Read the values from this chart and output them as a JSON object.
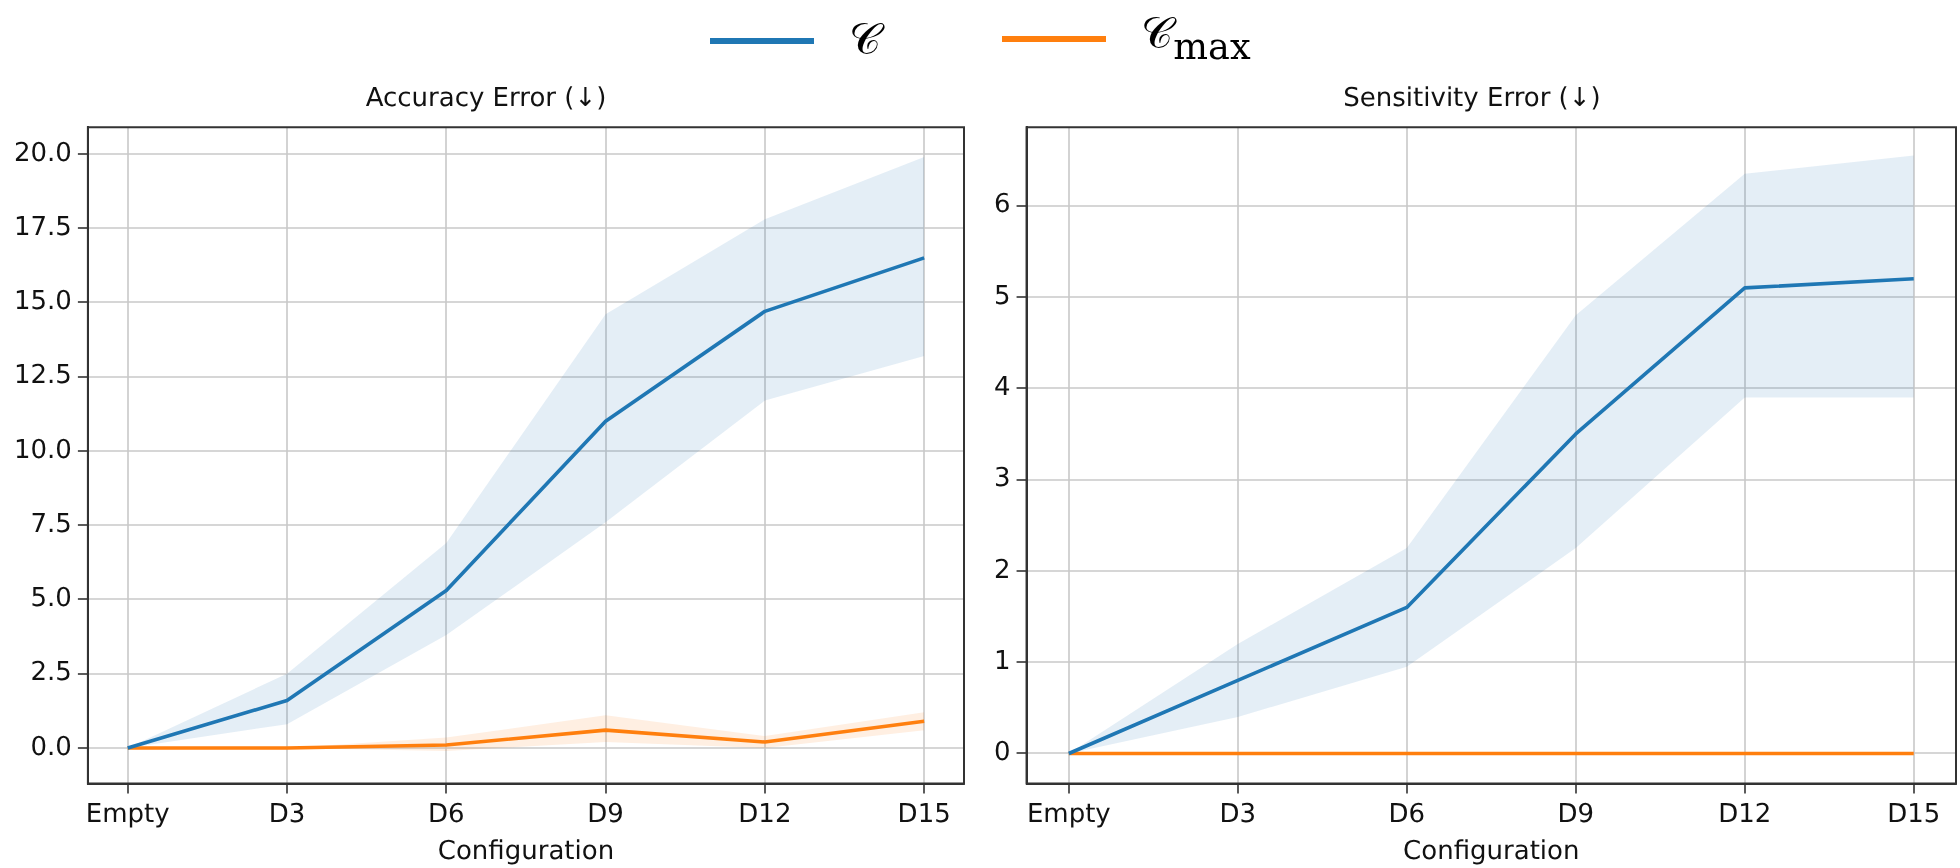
{
  "chart_data": [
    {
      "type": "line",
      "title": "Accuracy Error (↓)",
      "xlabel": "Configuration",
      "categories": [
        "Empty",
        "D3",
        "D6",
        "D9",
        "D12",
        "D15"
      ],
      "ylim": [
        -1.2,
        20.9
      ],
      "yticks": [
        {
          "value": 0,
          "label": "0.0"
        },
        {
          "value": 2.5,
          "label": "2.5"
        },
        {
          "value": 5,
          "label": "5.0"
        },
        {
          "value": 7.5,
          "label": "7.5"
        },
        {
          "value": 10,
          "label": "10.0"
        },
        {
          "value": 12.5,
          "label": "12.5"
        },
        {
          "value": 15,
          "label": "15.0"
        },
        {
          "value": 17.5,
          "label": "17.5"
        },
        {
          "value": 20,
          "label": "20.0"
        }
      ],
      "grid": true,
      "legend": "top",
      "marker": "none",
      "line_style": "solid",
      "series": [
        {
          "name": "𝒞",
          "color": "#1f77b4",
          "values": [
            0,
            1.6,
            5.3,
            11.0,
            14.7,
            16.5
          ],
          "lower": [
            0,
            0.8,
            3.8,
            7.6,
            11.7,
            13.2
          ],
          "upper": [
            0,
            2.5,
            6.9,
            14.6,
            17.8,
            19.9
          ]
        },
        {
          "name": "𝒞$_{max}$",
          "color": "#ff7f0e",
          "values": [
            0,
            0,
            0.1,
            0.6,
            0.2,
            0.9
          ],
          "lower": [
            0,
            0,
            -0.1,
            0.2,
            0,
            0.6
          ],
          "upper": [
            0,
            0,
            0.35,
            1.1,
            0.4,
            1.2
          ]
        }
      ]
    },
    {
      "type": "line",
      "title": "Sensitivity Error (↓)",
      "xlabel": "Configuration",
      "categories": [
        "Empty",
        "D3",
        "D6",
        "D9",
        "D12",
        "D15"
      ],
      "ylim": [
        -0.33,
        6.86
      ],
      "yticks": [
        0,
        1,
        2,
        3,
        4,
        5,
        6
      ],
      "grid": true,
      "marker": "none",
      "line_style": "solid",
      "series": [
        {
          "color": "#1f77b4",
          "values": [
            0,
            0.8,
            1.6,
            3.5,
            5.1,
            5.2
          ],
          "lower": [
            0,
            0.4,
            0.95,
            2.25,
            3.9,
            3.9
          ],
          "upper": [
            0,
            1.2,
            2.25,
            4.8,
            6.35,
            6.55
          ]
        },
        {
          "color": "#ff7f0e",
          "values": [
            0,
            0,
            0,
            0,
            0,
            0
          ]
        }
      ]
    }
  ]
}
